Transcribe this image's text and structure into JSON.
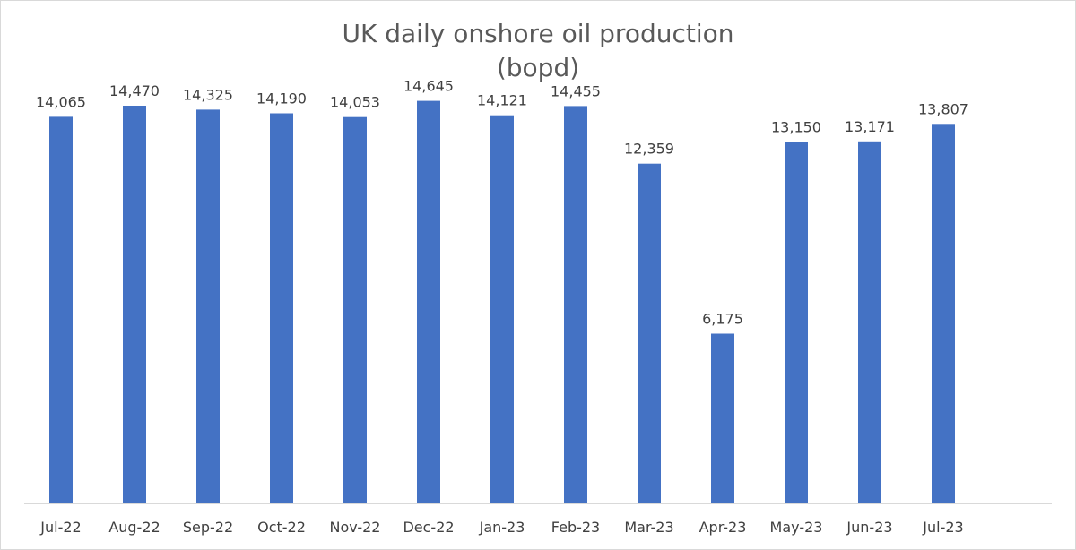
{
  "chart_data": {
    "type": "bar",
    "title": "UK daily onshore oil production",
    "subtitle": "(bopd)",
    "categories": [
      "Jul-22",
      "Aug-22",
      "Sep-22",
      "Oct-22",
      "Nov-22",
      "Dec-22",
      "Jan-23",
      "Feb-23",
      "Mar-23",
      "Apr-23",
      "May-23",
      "Jun-23",
      "Jul-23"
    ],
    "values": [
      14065,
      14470,
      14325,
      14190,
      14053,
      14645,
      14121,
      14455,
      12359,
      6175,
      13150,
      13171,
      13807
    ],
    "data_labels": [
      "14,065",
      "14,470",
      "14,325",
      "14,190",
      "14,053",
      "14,645",
      "14,121",
      "14,455",
      "12,359",
      "6,175",
      "13,150",
      "13,171",
      "13,807"
    ],
    "xlabel": "",
    "ylabel": "",
    "ylim": [
      0,
      16000
    ],
    "grid": false,
    "legend": "none",
    "bar_color": "#4472C4"
  }
}
